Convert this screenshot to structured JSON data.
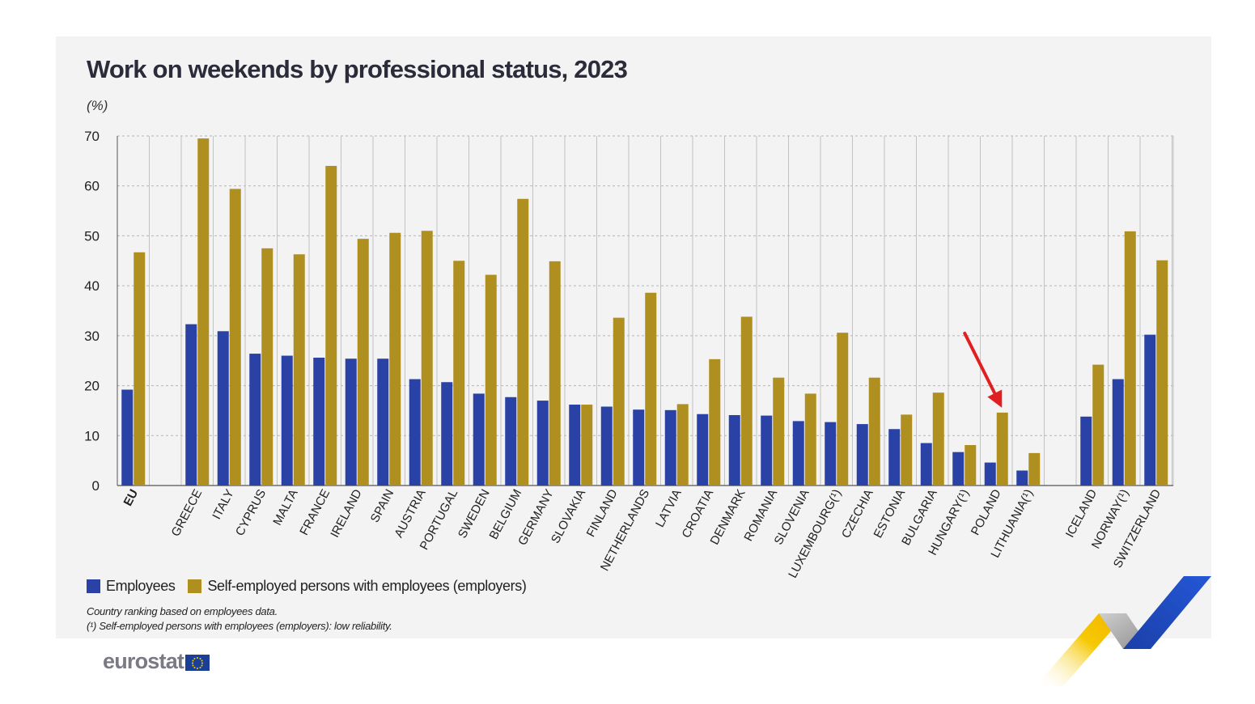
{
  "header": {
    "title": "Work on weekends by professional status, 2023",
    "unit": "(%)"
  },
  "legend": {
    "employees": "Employees",
    "employers": "Self-employed persons with employees (employers)"
  },
  "notes": {
    "ranking": "Country ranking based on employees data.",
    "reliability": "(¹) Self-employed persons with employees (employers): low reliability."
  },
  "logo": {
    "text": "eurostat",
    "icon": "eu-flag-icon"
  },
  "colors": {
    "employees": "#2a41a6",
    "employers": "#b08f21",
    "arrow": "#e02020"
  },
  "chart_data": {
    "type": "bar",
    "title": "Work on weekends by professional status, 2023",
    "ylabel": "(%)",
    "ylim": [
      0,
      70
    ],
    "yticks": [
      0,
      10,
      20,
      30,
      40,
      50,
      60,
      70
    ],
    "grid": true,
    "legend_position": "bottom-left",
    "categories": [
      "EU",
      "GREECE",
      "ITALY",
      "CYPRUS",
      "MALTA",
      "FRANCE",
      "IRELAND",
      "SPAIN",
      "AUSTRIA",
      "PORTUGAL",
      "SWEDEN",
      "BELGIUM",
      "GERMANY",
      "SLOVAKIA",
      "FINLAND",
      "NETHERLANDS",
      "LATVIA",
      "CROATIA",
      "DENMARK",
      "ROMANIA",
      "SLOVENIA",
      "LUXEMBOURG(¹)",
      "CZECHIA",
      "ESTONIA",
      "BULGARIA",
      "HUNGARY(¹)",
      "POLAND",
      "LITHUANIA(¹)",
      "ICELAND",
      "NORWAY(¹)",
      "SWITZERLAND"
    ],
    "groups": [
      1,
      27,
      3
    ],
    "series": [
      {
        "name": "Employees",
        "values": [
          19.2,
          32.3,
          30.9,
          26.4,
          26.0,
          25.6,
          25.4,
          25.4,
          21.3,
          20.7,
          18.4,
          17.7,
          17.0,
          16.2,
          15.8,
          15.2,
          15.1,
          14.3,
          14.1,
          14.0,
          12.9,
          12.7,
          12.3,
          11.3,
          8.5,
          6.7,
          4.6,
          3.0,
          13.8,
          21.3,
          30.2
        ]
      },
      {
        "name": "Self-employed persons with employees (employers)",
        "values": [
          46.7,
          69.5,
          59.4,
          47.5,
          46.3,
          64.0,
          49.4,
          50.6,
          51.0,
          45.0,
          42.2,
          57.4,
          44.9,
          16.2,
          33.6,
          38.6,
          16.3,
          25.3,
          33.8,
          21.6,
          18.4,
          30.6,
          21.6,
          14.2,
          18.6,
          8.1,
          14.6,
          6.5,
          24.2,
          50.9,
          45.1
        ]
      }
    ],
    "annotations": [
      {
        "type": "arrow",
        "target": "POLAND"
      }
    ]
  }
}
